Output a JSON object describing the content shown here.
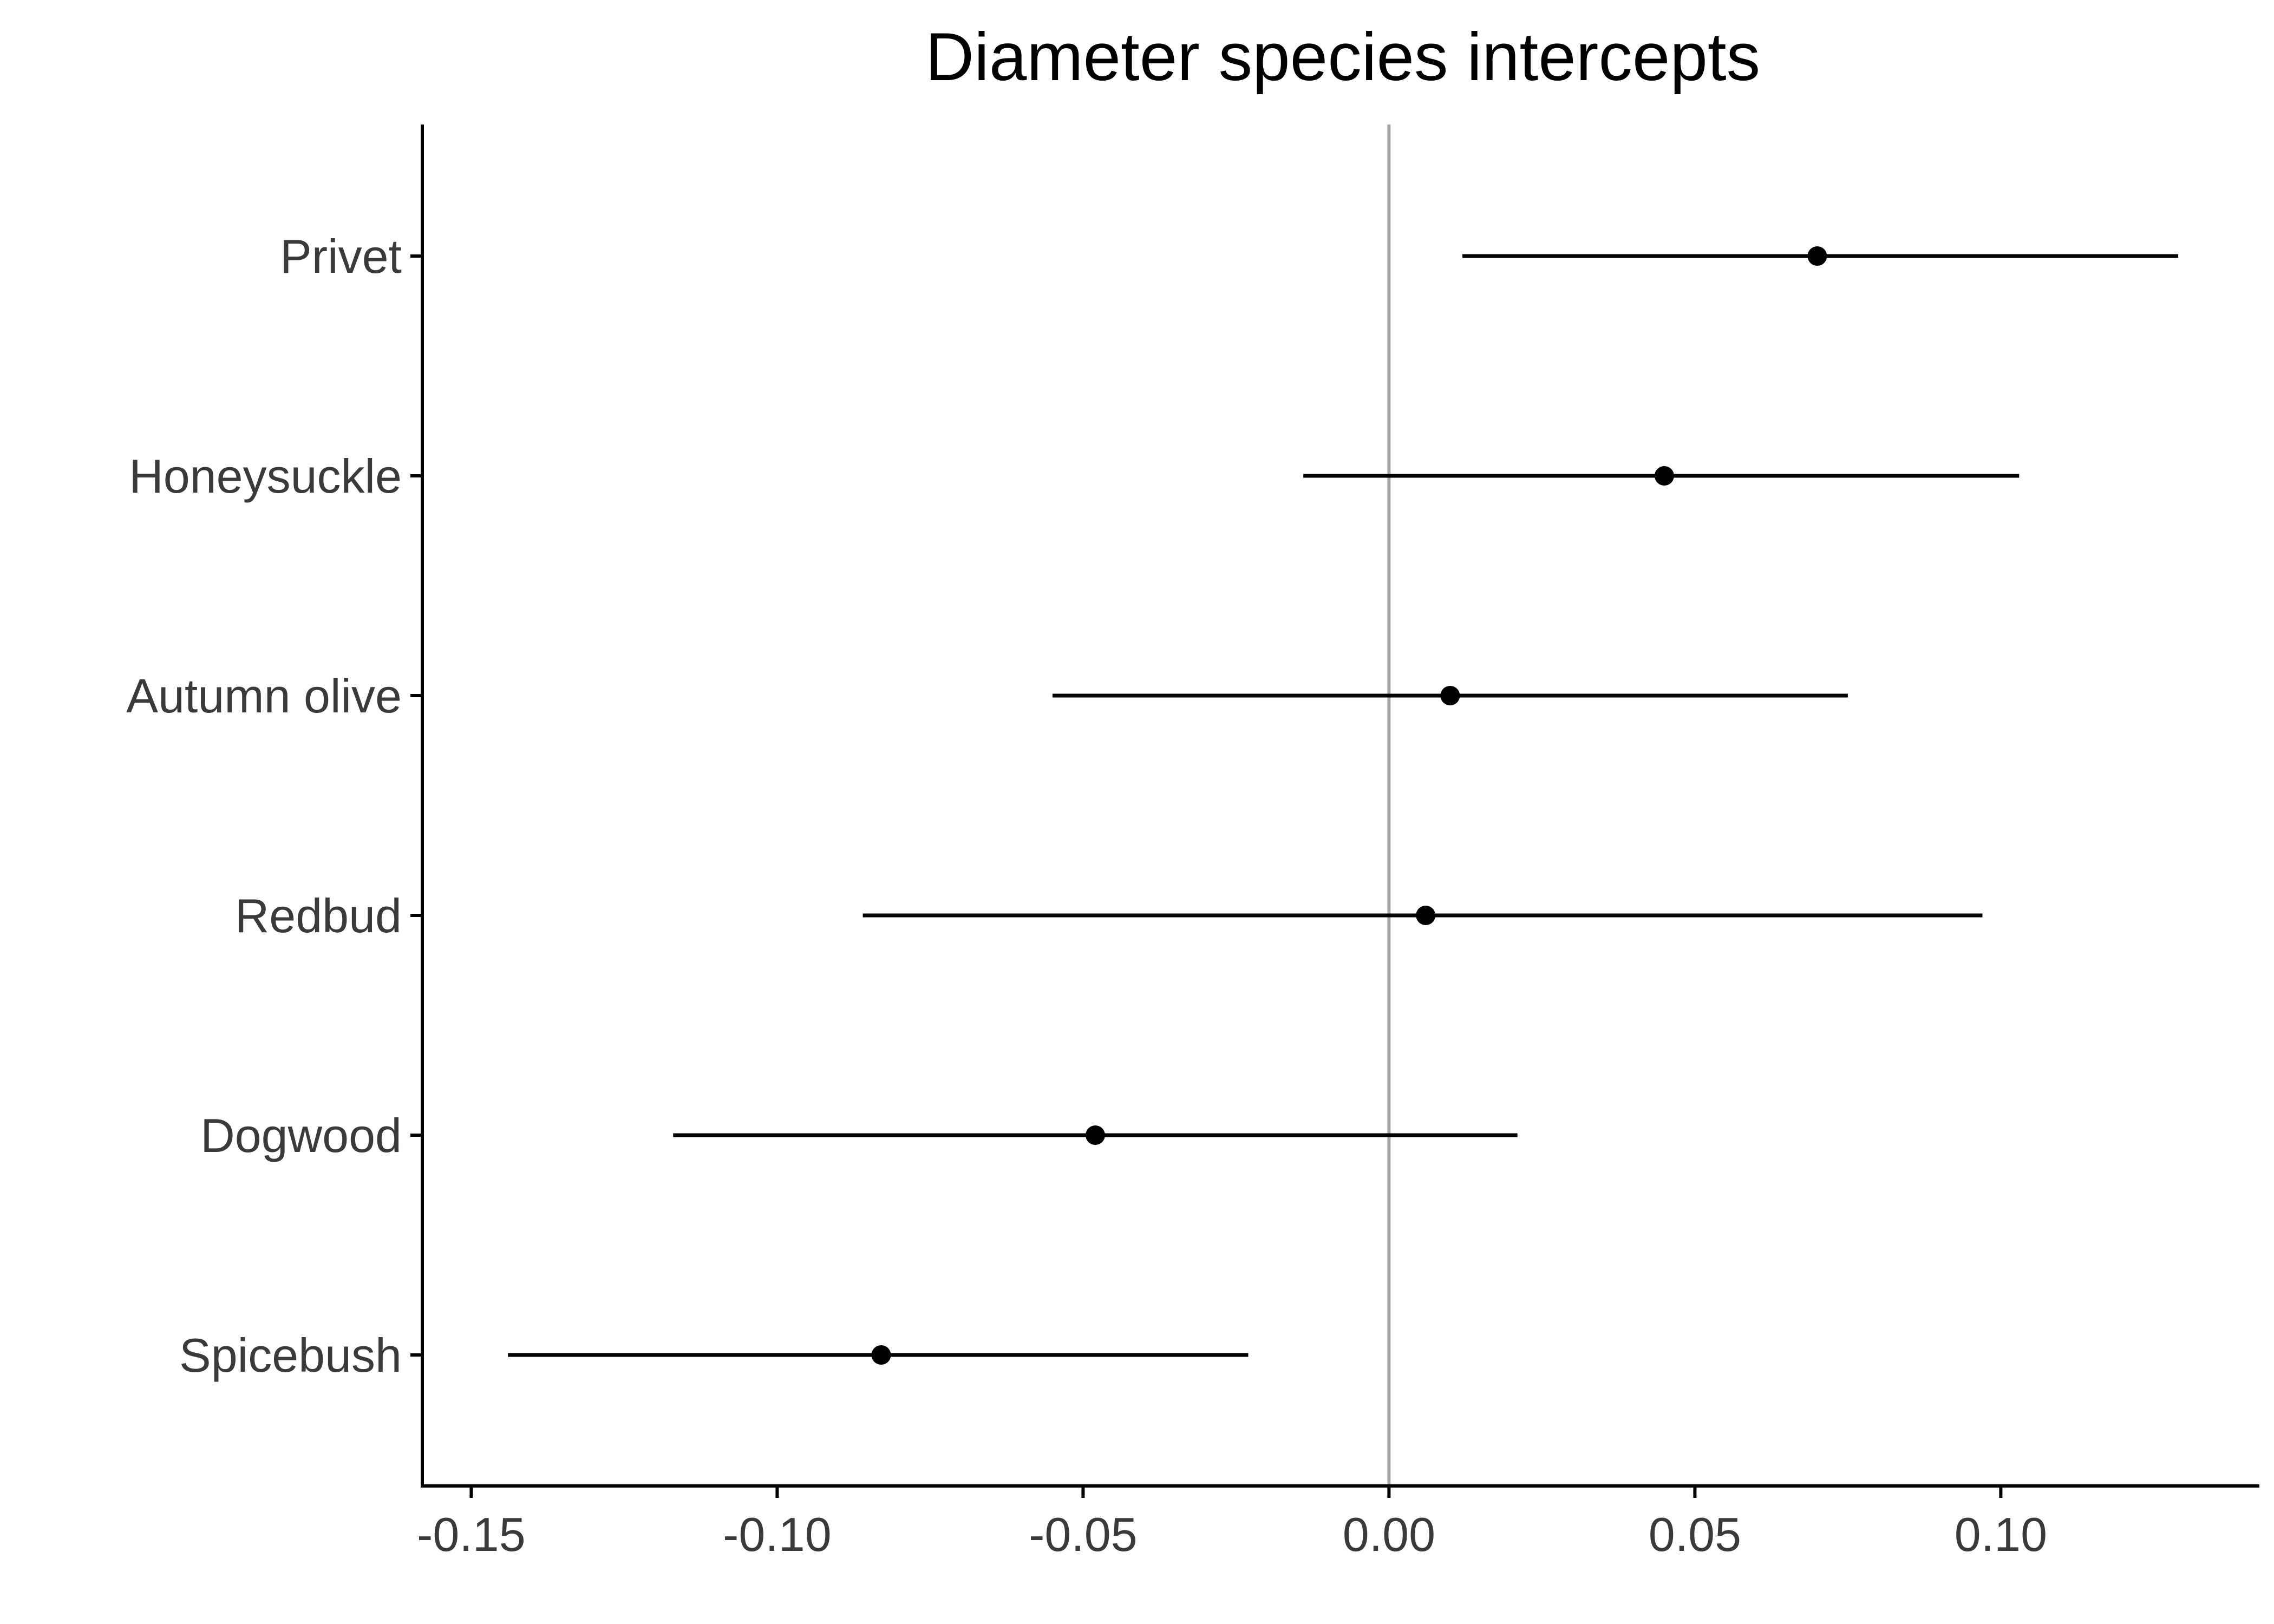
{
  "chart_data": {
    "type": "scatter",
    "subtype": "dot-and-whisker",
    "title": "Diameter species intercepts",
    "xlabel": "",
    "ylabel": "",
    "xlim": [
      -0.158,
      0.142
    ],
    "x_ticks": [
      -0.15,
      -0.1,
      -0.05,
      0.0,
      0.05,
      0.1
    ],
    "x_tick_labels": [
      "-0.15",
      "-0.10",
      "-0.05",
      "0.00",
      "0.05",
      "0.10"
    ],
    "reference_line": {
      "x": 0,
      "color": "#a6a6a6"
    },
    "grid": false,
    "legend": "none",
    "categories": [
      "Privet",
      "Honeysuckle",
      "Autumn olive",
      "Redbud",
      "Dogwood",
      "Spicebush"
    ],
    "series": [
      {
        "estimate": [
          0.07,
          0.045,
          0.01,
          0.006,
          -0.048,
          -0.083
        ],
        "lower": [
          0.012,
          -0.014,
          -0.055,
          -0.086,
          -0.117,
          -0.144
        ],
        "upper": [
          0.129,
          0.103,
          0.075,
          0.097,
          0.021,
          -0.023
        ],
        "color": "#000000"
      }
    ]
  }
}
